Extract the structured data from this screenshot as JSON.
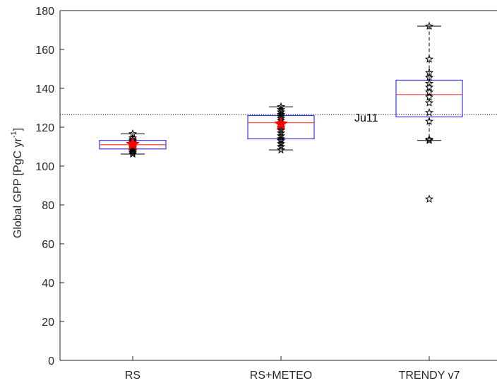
{
  "chart_data": {
    "type": "box",
    "categories": [
      "RS",
      "RS+METEO",
      "TRENDY v7"
    ],
    "ylabel_main": "Global GPP [PgC yr",
    "ylabel_sup": "-1",
    "ylabel_tail": "]",
    "ylim": [
      0,
      180
    ],
    "yticks": [
      0,
      20,
      40,
      60,
      80,
      100,
      120,
      140,
      160,
      180
    ],
    "grid": false,
    "reference_line": {
      "label": "Ju11",
      "value": 126.5
    },
    "boxes": [
      {
        "category": "RS",
        "q1": 108.8,
        "median": 111.0,
        "q3": 113.2,
        "whisker_low": 106.2,
        "whisker_high": 116.6,
        "mean": 111.2,
        "outliers": [],
        "points": [
          106.2,
          106.8,
          107.5,
          108.2,
          108.8,
          109.5,
          110.2,
          111.0,
          111.6,
          112.2,
          113.0,
          113.6,
          114.4,
          116.6
        ]
      },
      {
        "category": "RS+METEO",
        "q1": 114.0,
        "median": 122.3,
        "q3": 126.0,
        "whisker_low": 108.3,
        "whisker_high": 130.5,
        "mean": 121.6,
        "outliers": [],
        "points": [
          108.3,
          110.0,
          111.5,
          113.0,
          114.0,
          115.5,
          117.0,
          118.5,
          120.0,
          121.5,
          122.3,
          123.5,
          124.5,
          125.5,
          126.5,
          127.8,
          129.0,
          130.5
        ]
      },
      {
        "category": "TRENDY v7",
        "q1": 125.3,
        "median": 136.8,
        "q3": 144.2,
        "whisker_low": 113.2,
        "whisker_high": 172.0,
        "mean": null,
        "outliers": [
          83.0
        ],
        "points": [
          83.0,
          113.2,
          113.8,
          123.0,
          127.5,
          132.5,
          135.5,
          138.0,
          140.5,
          142.5,
          145.5,
          148.0,
          155.0,
          172.0
        ]
      }
    ],
    "colors": {
      "box": "#3535e0",
      "median": "#ff3b3b",
      "mean_marker": "#ff0000",
      "points": "#000000",
      "refline": "#000000",
      "axis": "#262626"
    }
  }
}
